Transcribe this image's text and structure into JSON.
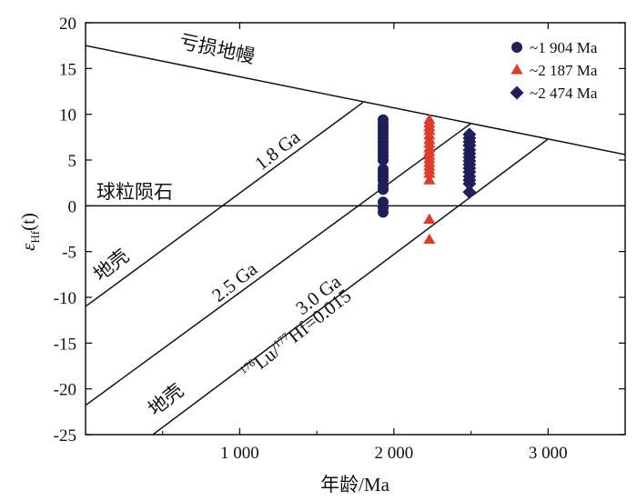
{
  "chart_data": {
    "type": "scatter",
    "xlabel": "年龄/Ma",
    "ylabel_main": "ε",
    "ylabel_sub": "Hf",
    "ylabel_arg": "(t)",
    "xlim": [
      0,
      3500
    ],
    "ylim": [
      -25,
      20
    ],
    "x_ticks": [
      1000,
      2000,
      3000
    ],
    "x_tick_labels": [
      "1 000",
      "2 000",
      "3 000"
    ],
    "y_ticks": [
      -25,
      -20,
      -15,
      -10,
      -5,
      0,
      5,
      10,
      15,
      20
    ],
    "y_tick_labels": [
      "-25",
      "-20",
      "-15",
      "-10",
      "-5",
      "0",
      "5",
      "10",
      "15",
      "20"
    ],
    "grid": false,
    "legend_position": "top-right",
    "reference_lines": [
      {
        "name": "亏损地幔",
        "x": [
          0,
          3500
        ],
        "y": [
          17.5,
          5.6
        ]
      },
      {
        "name": "球粒陨石",
        "x": [
          0,
          3500
        ],
        "y": [
          0,
          0
        ]
      },
      {
        "name": "1.8 Ga",
        "x": [
          0,
          1800
        ],
        "y": [
          -11,
          11.3
        ]
      },
      {
        "name": "2.5 Ga",
        "x": [
          0,
          2500
        ],
        "y": [
          -21.8,
          9.0
        ]
      },
      {
        "name": "3.0 Ga",
        "x": [
          0,
          3000
        ],
        "y": [
          -30.5,
          7.3
        ]
      }
    ],
    "annotations": {
      "depleted_mantle": "亏损地幔",
      "chondrite": "球粒陨石",
      "crust_1": "地壳",
      "crust_2": "地壳",
      "ga_18": "1.8 Ga",
      "ga_25": "2.5 Ga",
      "ga_30": "3.0 Ga",
      "ratio_sup1": "176",
      "ratio_t1": "Lu/",
      "ratio_sup2": "177",
      "ratio_t2": "Hf=0.015"
    },
    "series": [
      {
        "name": "~1 904 Ma",
        "marker": "circle",
        "color": "#1f1f5a",
        "x": 1930,
        "y": [
          9.4,
          9.0,
          8.6,
          8.2,
          7.8,
          7.4,
          7.0,
          6.6,
          6.2,
          5.8,
          5.4,
          5.0,
          4.0,
          3.6,
          3.2,
          2.8,
          2.2,
          1.8,
          0.4,
          -0.2,
          -0.7
        ]
      },
      {
        "name": "~2 187 Ma",
        "marker": "triangle",
        "color": "#e03a2a",
        "x": 2230,
        "y": [
          9.4,
          9.0,
          8.6,
          8.2,
          7.7,
          7.2,
          6.8,
          6.3,
          5.9,
          5.5,
          5.1,
          4.7,
          4.3,
          3.9,
          3.5,
          2.8,
          -1.5,
          -3.7
        ]
      },
      {
        "name": "~2 474 Ma",
        "marker": "diamond",
        "color": "#1f1f5a",
        "x": 2490,
        "y": [
          7.8,
          7.4,
          7.0,
          6.6,
          6.1,
          5.7,
          5.3,
          4.9,
          4.5,
          4.1,
          3.7,
          3.2,
          2.8,
          2.4,
          1.5
        ]
      }
    ]
  }
}
